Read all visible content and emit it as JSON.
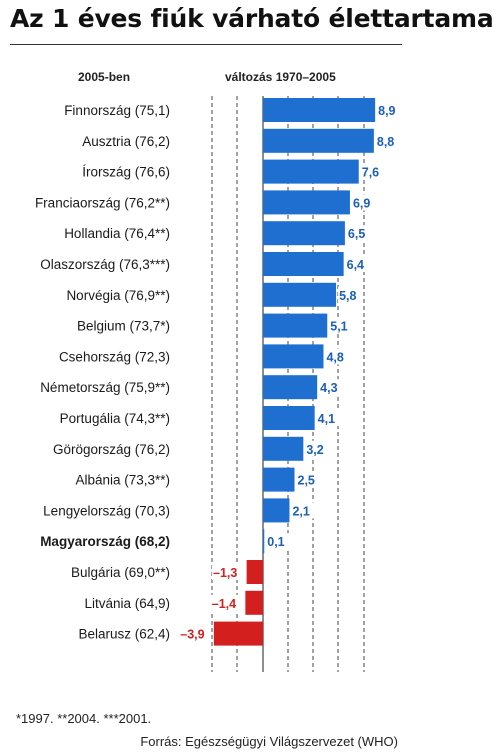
{
  "title": "Az 1 éves fiúk várható élettartama",
  "header_left": "2005-ben",
  "header_right": "változás 1970–2005",
  "footnote": "*1997. **2004. ***2001.",
  "source": "Forrás: Egészségügyi Világszervezet (WHO)",
  "colors": {
    "positive": "#1f6fd1",
    "negative": "#d41f1f",
    "positive_label": "#1b5fb8",
    "negative_label": "#d41f1f",
    "grid": "#444444"
  },
  "chart_data": {
    "type": "bar",
    "orientation": "horizontal",
    "xlim": [
      -3.9,
      8.9
    ],
    "categories": [
      "Finnország (75,1)",
      "Ausztria (76,2)",
      "Írország (76,6)",
      "Franciaország (76,2**)",
      "Hollandia (76,4**)",
      "Olaszország (76,3***)",
      "Norvégia (76,9**)",
      "Belgium (73,7*)",
      "Csehország (72,3)",
      "Németország (75,9**)",
      "Portugália (74,3**)",
      "Görögország (76,2)",
      "Albánia (73,3**)",
      "Lengyelország (70,3)",
      "Magyarország (68,2)",
      "Bulgária (69,0**)",
      "Litvánia (64,9)",
      "Belarusz (62,4)"
    ],
    "values": [
      8.9,
      8.8,
      7.6,
      6.9,
      6.5,
      6.4,
      5.8,
      5.1,
      4.8,
      4.3,
      4.1,
      3.2,
      2.5,
      2.1,
      0.1,
      -1.3,
      -1.4,
      -3.9
    ],
    "value_labels": [
      "8,9",
      "8,8",
      "7,6",
      "6,9",
      "6,5",
      "6,4",
      "5,8",
      "5,1",
      "4,8",
      "4,3",
      "4,1",
      "3,2",
      "2,5",
      "2,1",
      "0,1",
      "–1,3",
      "–1,4",
      "–3,9"
    ],
    "highlight": "Magyarország (68,2)"
  }
}
